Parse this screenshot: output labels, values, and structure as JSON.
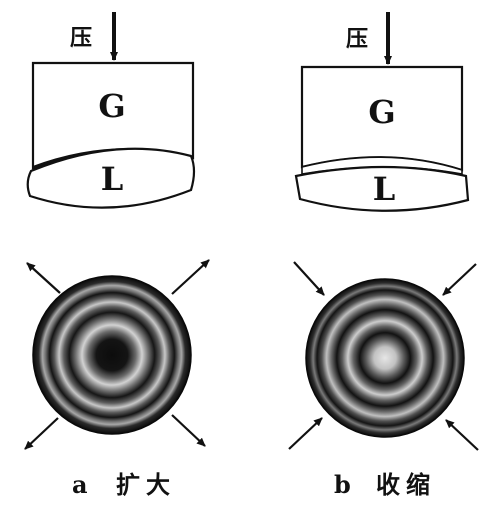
{
  "panels": {
    "a": {
      "press_label": "压",
      "block_label": "G",
      "lens_label": "L",
      "caption_letter": "a",
      "caption_text": "扩大"
    },
    "b": {
      "press_label": "压",
      "block_label": "G",
      "lens_label": "L",
      "caption_letter": "b",
      "caption_text": "收缩"
    }
  }
}
